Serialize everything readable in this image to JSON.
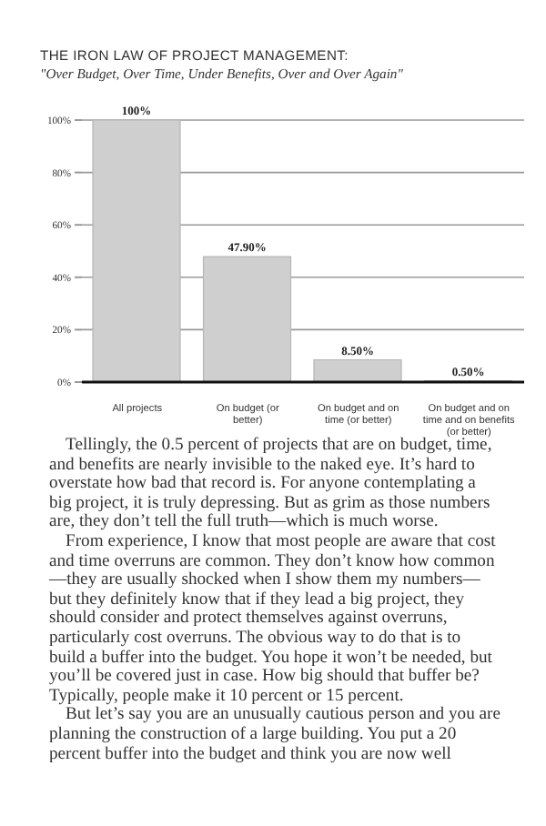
{
  "chart_data": {
    "type": "bar",
    "title": "THE IRON LAW OF PROJECT MANAGEMENT:",
    "subtitle": "\"Over Budget, Over Time, Under Benefits, Over and Over Again\"",
    "categories": [
      "All projects",
      "On budget (or better)",
      "On budget and on time (or better)",
      "On budget and on time and on benefits (or better)"
    ],
    "values": [
      100,
      47.9,
      8.5,
      0.5
    ],
    "value_labels": [
      "100%",
      "47.90%",
      "8.50%",
      "0.50%"
    ],
    "color": "#cfcfcf",
    "ylim": [
      0,
      100
    ],
    "yticks": [
      {
        "value": 0,
        "label": "0%"
      },
      {
        "value": 20,
        "label": "20%"
      },
      {
        "value": 40,
        "label": "40%"
      },
      {
        "value": 60,
        "label": "60%"
      },
      {
        "value": 80,
        "label": "80%"
      },
      {
        "value": 100,
        "label": "100%"
      }
    ],
    "grid": "y",
    "annotations": [
      "Tellingly, the 0.5 percent of projects that are on budget, time, and benefits are nearly invisible to the naked eye. It’s hard to overstate how bad that record is. For anyone contemplating a big project, it is truly depressing. But as grim as those numbers are, they don’t tell the full truth—which is much worse.",
      "From experience, I know that most people are aware that cost and time overruns are common. They don’t know how common—they are usually shocked when I show them my numbers—but they definitely know that if they lead a big project, they should consider and protect themselves against overruns, particularly cost overruns. The obvious way to do that is to build a buffer into the budget. You hope it won’t be needed, but you’ll be covered just in case. How big should that buffer be? Typically, people make it 10 percent or 15 percent.",
      "But let’s say you are an unusually cautious person and you are planning the construction of a large building. You put a 20 percent buffer into the budget and think you are now well"
    ]
  }
}
